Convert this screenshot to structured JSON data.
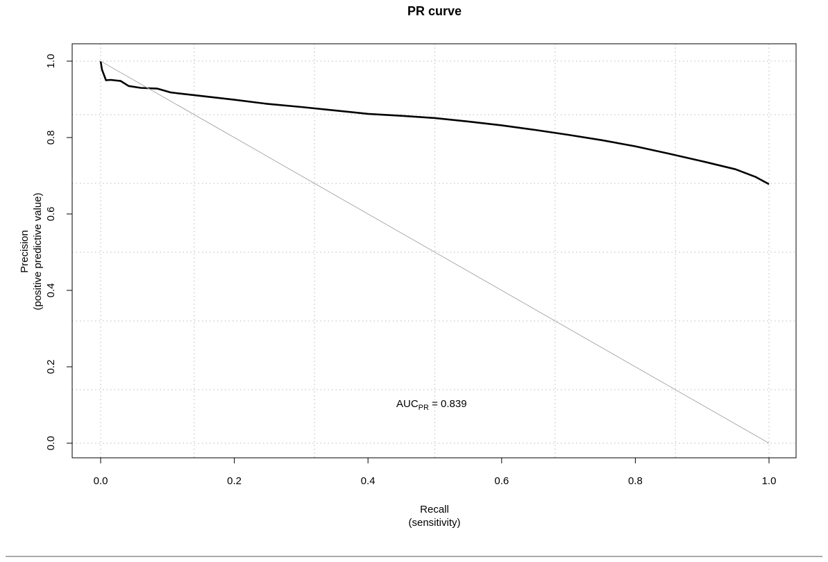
{
  "chart_data": {
    "type": "line",
    "title": "PR curve",
    "xlabel": [
      "Recall",
      "(sensitivity)"
    ],
    "ylabel": [
      "Precision",
      "(positive predictive value)"
    ],
    "xlim": [
      0,
      1
    ],
    "ylim": [
      0,
      1
    ],
    "x_ticks": [
      "0.0",
      "0.2",
      "0.4",
      "0.6",
      "0.8",
      "1.0"
    ],
    "y_ticks": [
      "0.0",
      "0.2",
      "0.4",
      "0.6",
      "0.8",
      "1.0"
    ],
    "grid": true,
    "vertical_grid_x": [
      0,
      0.14,
      0.32,
      0.5,
      0.68,
      0.86,
      1.0
    ],
    "horizontal_grid_y": [
      0,
      0.14,
      0.32,
      0.5,
      0.68,
      0.86,
      1.0
    ],
    "annotation": {
      "main": "AUC",
      "sub": "PR",
      "rest": " = 0.839"
    },
    "series": [
      {
        "x": [
          0.0,
          0.002,
          0.008,
          0.015,
          0.03,
          0.042,
          0.06,
          0.085,
          0.105,
          0.15,
          0.2,
          0.25,
          0.3,
          0.35,
          0.4,
          0.45,
          0.5,
          0.55,
          0.6,
          0.65,
          0.7,
          0.75,
          0.8,
          0.85,
          0.9,
          0.95,
          0.98,
          1.0
        ],
        "values": [
          1.0,
          0.978,
          0.95,
          0.951,
          0.948,
          0.935,
          0.93,
          0.928,
          0.918,
          0.909,
          0.899,
          0.888,
          0.88,
          0.871,
          0.862,
          0.857,
          0.851,
          0.842,
          0.832,
          0.82,
          0.807,
          0.793,
          0.777,
          0.758,
          0.738,
          0.717,
          0.697,
          0.678
        ],
        "color": "#000000"
      },
      {
        "x": [
          0,
          1
        ],
        "values": [
          1,
          0
        ],
        "color": "#aaaaaa"
      }
    ]
  }
}
